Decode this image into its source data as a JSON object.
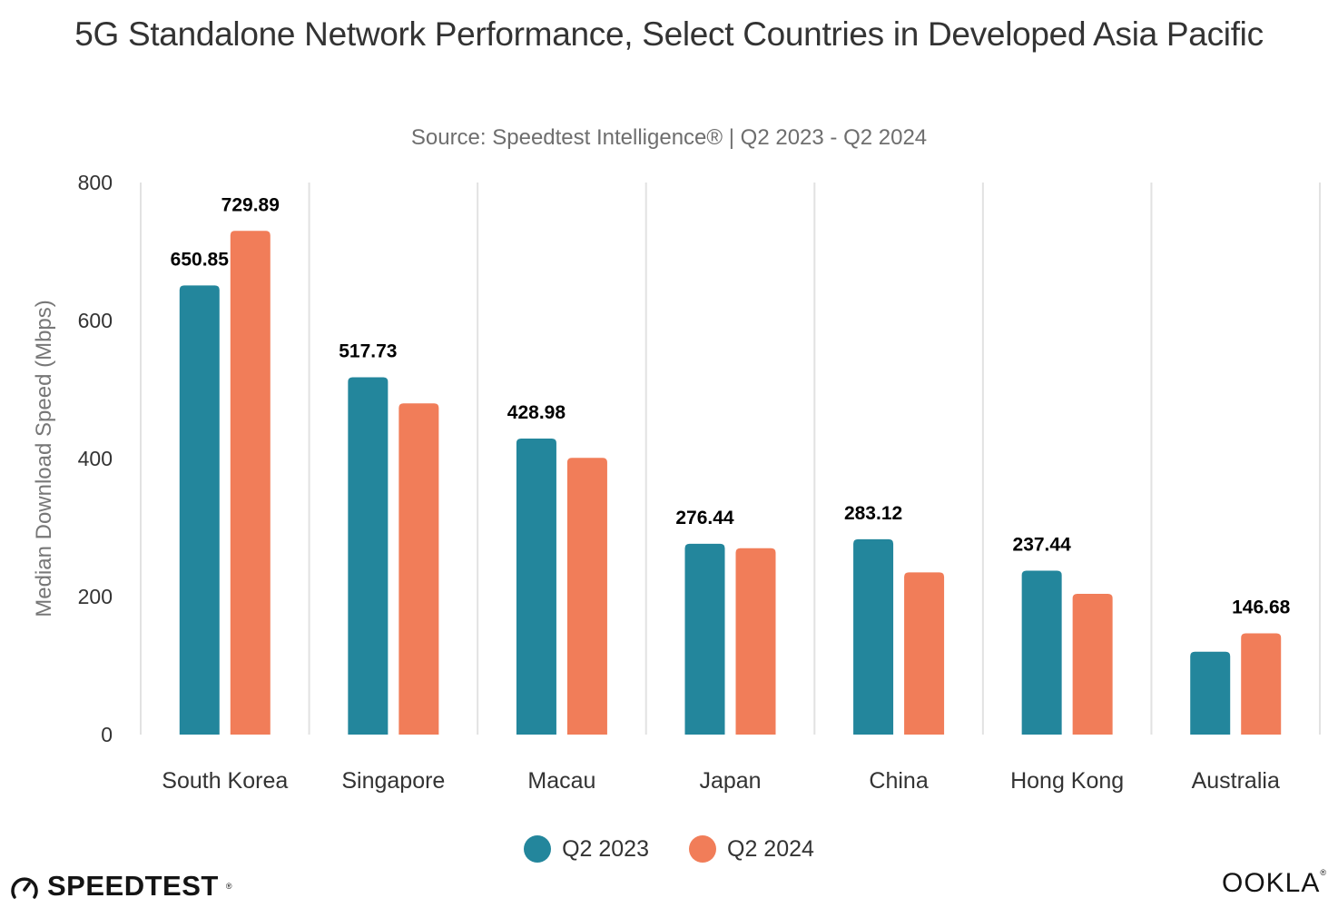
{
  "header": {
    "title": "5G Standalone Network Performance, Select Countries in Developed Asia Pacific",
    "subtitle": "Source: Speedtest Intelligence® | Q2 2023 - Q2 2024"
  },
  "colors": {
    "q2_2023": "#23869c",
    "q2_2024": "#f17d59",
    "grid": "#e2e2e2",
    "tick_text": "#333333",
    "axis_title": "#777777",
    "data_label": "#000000"
  },
  "chart_data": {
    "type": "bar",
    "title": "5G Standalone Network Performance, Select Countries in Developed Asia Pacific",
    "subtitle": "Source: Speedtest Intelligence® | Q2 2023 - Q2 2024",
    "xlabel": "",
    "ylabel": "Median Download Speed (Mbps)",
    "ylim": [
      0,
      800
    ],
    "yticks": [
      0,
      200,
      400,
      600,
      800
    ],
    "categories": [
      "South Korea",
      "Singapore",
      "Macau",
      "Japan",
      "China",
      "Hong Kong",
      "Australia"
    ],
    "series": [
      {
        "name": "Q2 2023",
        "values": [
          650.85,
          517.73,
          428.98,
          276.44,
          283.12,
          237.44,
          120
        ]
      },
      {
        "name": "Q2 2024",
        "values": [
          729.89,
          480,
          401,
          270,
          235,
          204,
          146.68
        ]
      }
    ],
    "data_labels": [
      {
        "category": "South Korea",
        "series": "Q2 2023",
        "text": "650.85"
      },
      {
        "category": "South Korea",
        "series": "Q2 2024",
        "text": "729.89"
      },
      {
        "category": "Singapore",
        "series": "Q2 2023",
        "text": "517.73"
      },
      {
        "category": "Macau",
        "series": "Q2 2023",
        "text": "428.98"
      },
      {
        "category": "Japan",
        "series": "Q2 2023",
        "text": "276.44"
      },
      {
        "category": "China",
        "series": "Q2 2023",
        "text": "283.12"
      },
      {
        "category": "Hong Kong",
        "series": "Q2 2023",
        "text": "237.44"
      },
      {
        "category": "Australia",
        "series": "Q2 2024",
        "text": "146.68"
      }
    ],
    "grid": "vertical category separators",
    "legend": {
      "position": "bottom-center",
      "entries": [
        "Q2 2023",
        "Q2 2024"
      ]
    }
  },
  "legend": {
    "items": [
      {
        "label": "Q2 2023"
      },
      {
        "label": "Q2 2024"
      }
    ]
  },
  "footer": {
    "left_brand": "SPEEDTEST",
    "right_brand": "OOKLA"
  }
}
